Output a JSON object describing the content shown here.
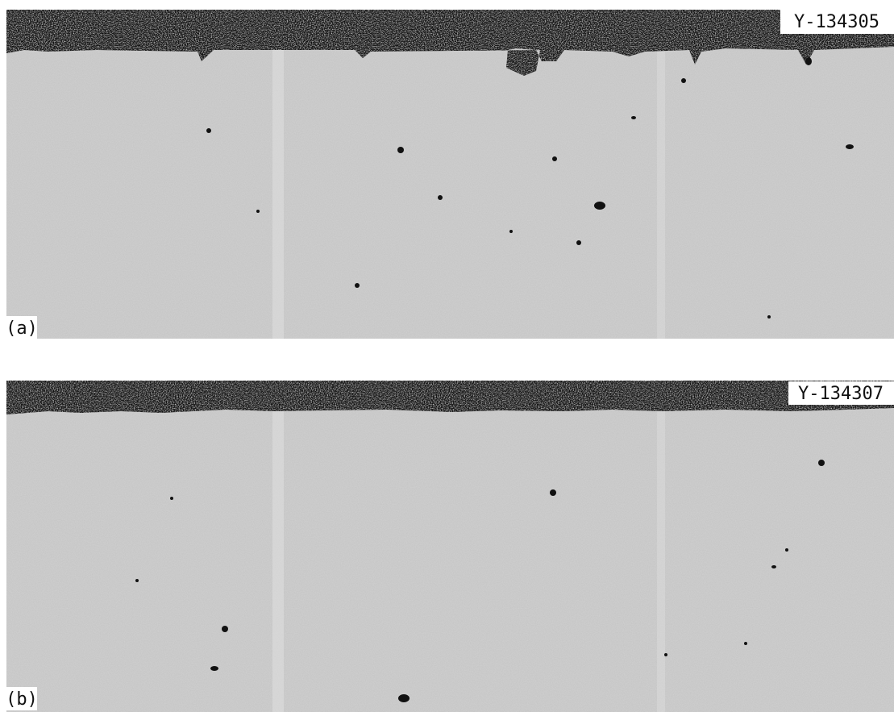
{
  "panels": [
    {
      "specimen": "Y-134305",
      "label": "(a)"
    },
    {
      "specimen": "Y-134307",
      "label": "(b)"
    }
  ]
}
